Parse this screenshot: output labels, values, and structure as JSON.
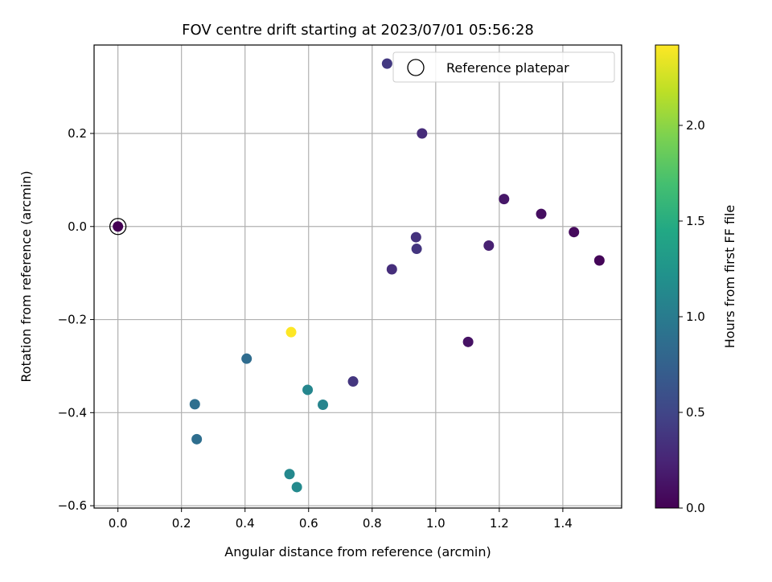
{
  "chart_data": {
    "type": "scatter",
    "title": "FOV centre drift starting at 2023/07/01 05:56:28",
    "xlabel": "Angular distance from reference (arcmin)",
    "ylabel": "Rotation from reference (arcmin)",
    "xlim": [
      -0.075,
      1.585
    ],
    "ylim": [
      -0.605,
      0.39
    ],
    "xticks": [
      0.0,
      0.2,
      0.4,
      0.6,
      0.8,
      1.0,
      1.2,
      1.4
    ],
    "xtick_labels": [
      "0.0",
      "0.2",
      "0.4",
      "0.6",
      "0.8",
      "1.0",
      "1.2",
      "1.4"
    ],
    "yticks": [
      -0.6,
      -0.4,
      -0.2,
      0.0,
      0.2
    ],
    "ytick_labels": [
      "−0.6",
      "−0.4",
      "−0.2",
      "0.0",
      "0.2"
    ],
    "grid": true,
    "legend": {
      "position": "top-right",
      "entries": [
        "Reference platepar"
      ]
    },
    "reference_point": {
      "x": 0.0,
      "y": 0.0
    },
    "colormap": "viridis",
    "colorbar": {
      "label": "Hours from first FF file",
      "min": 0.0,
      "max": 2.42,
      "ticks": [
        0.0,
        0.5,
        1.0,
        1.5,
        2.0
      ],
      "tick_labels": [
        "0.0",
        "0.5",
        "1.0",
        "1.5",
        "2.0"
      ]
    },
    "points": [
      {
        "x": 0.0,
        "y": 0.0,
        "c": 0.0
      },
      {
        "x": 1.515,
        "y": -0.073,
        "c": 0.03
      },
      {
        "x": 1.435,
        "y": -0.012,
        "c": 0.06
      },
      {
        "x": 1.332,
        "y": 0.027,
        "c": 0.09
      },
      {
        "x": 1.215,
        "y": 0.059,
        "c": 0.15
      },
      {
        "x": 1.102,
        "y": -0.248,
        "c": 0.12
      },
      {
        "x": 1.167,
        "y": -0.041,
        "c": 0.22
      },
      {
        "x": 0.938,
        "y": -0.023,
        "c": 0.35
      },
      {
        "x": 0.94,
        "y": -0.048,
        "c": 0.37
      },
      {
        "x": 0.862,
        "y": -0.092,
        "c": 0.32
      },
      {
        "x": 0.847,
        "y": 0.35,
        "c": 0.4
      },
      {
        "x": 0.957,
        "y": 0.2,
        "c": 0.3
      },
      {
        "x": 0.74,
        "y": -0.333,
        "c": 0.38
      },
      {
        "x": 0.405,
        "y": -0.284,
        "c": 0.85
      },
      {
        "x": 0.242,
        "y": -0.382,
        "c": 0.88
      },
      {
        "x": 0.248,
        "y": -0.457,
        "c": 0.87
      },
      {
        "x": 0.597,
        "y": -0.351,
        "c": 1.1
      },
      {
        "x": 0.645,
        "y": -0.383,
        "c": 1.08
      },
      {
        "x": 0.54,
        "y": -0.532,
        "c": 1.12
      },
      {
        "x": 0.563,
        "y": -0.56,
        "c": 1.14
      },
      {
        "x": 0.545,
        "y": -0.227,
        "c": 2.42
      }
    ]
  }
}
